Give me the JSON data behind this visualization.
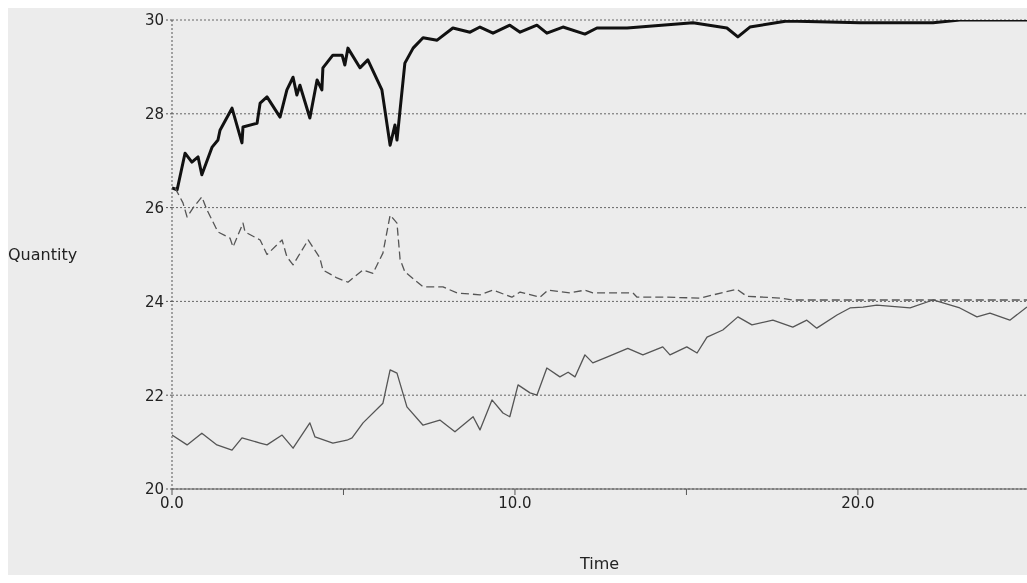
{
  "chart_data": {
    "type": "line",
    "xlabel": "Time",
    "ylabel": "Quantity",
    "xlim": [
      0,
      24.93
    ],
    "ylim": [
      20,
      30
    ],
    "xticks": [
      {
        "value": 0,
        "label": "0.0"
      },
      {
        "value": 5,
        "label": null
      },
      {
        "value": 10,
        "label": "10.0"
      },
      {
        "value": 15,
        "label": null
      },
      {
        "value": 20,
        "label": "20.0"
      }
    ],
    "yticks": [
      20,
      22,
      24,
      26,
      28,
      30
    ],
    "grid": "y",
    "marker": "none",
    "series": [
      {
        "color": "#111111",
        "line_style": "solid",
        "x": [
          0,
          0.15,
          0.38,
          0.58,
          0.76,
          0.87,
          1.17,
          1.34,
          1.4,
          1.75,
          2.04,
          2.07,
          2.48,
          2.57,
          2.77,
          3.15,
          3.35,
          3.53,
          3.64,
          3.73,
          4.02,
          4.23,
          4.37,
          4.4,
          4.69,
          4.96,
          5.04,
          5.13,
          5.48,
          5.71,
          6.12,
          6.36,
          6.5,
          6.56,
          6.79,
          7.03,
          7.32,
          7.73,
          8.19,
          8.69,
          8.98,
          9.36,
          9.85,
          10.15,
          10.64,
          10.93,
          11.4,
          12.04,
          12.39,
          13.27,
          15.19,
          16.18,
          16.5,
          16.85,
          17.93,
          20.06,
          22.19,
          22.97,
          24.93
        ],
        "values": [
          26.42,
          26.38,
          27.16,
          26.97,
          27.08,
          26.7,
          27.29,
          27.44,
          27.65,
          28.12,
          27.38,
          27.72,
          27.8,
          28.23,
          28.36,
          27.93,
          28.51,
          28.78,
          28.4,
          28.61,
          27.91,
          28.72,
          28.51,
          28.98,
          29.25,
          29.25,
          29.04,
          29.4,
          28.98,
          29.15,
          28.51,
          27.33,
          27.76,
          27.44,
          29.08,
          29.4,
          29.62,
          29.57,
          29.83,
          29.74,
          29.85,
          29.72,
          29.89,
          29.74,
          29.89,
          29.72,
          29.85,
          29.7,
          29.83,
          29.83,
          29.94,
          29.83,
          29.64,
          29.85,
          29.98,
          29.94,
          29.94,
          30,
          30
        ]
      },
      {
        "color": "#555555",
        "line_style": "dashed",
        "x": [
          0.09,
          0.32,
          0.44,
          0.61,
          0.87,
          1.02,
          1.34,
          1.69,
          1.78,
          2.07,
          2.13,
          2.57,
          2.77,
          3.21,
          3.35,
          3.53,
          3.97,
          4.31,
          4.4,
          4.81,
          5.13,
          5.57,
          5.86,
          6.15,
          6.36,
          6.56,
          6.65,
          6.79,
          7.32,
          7.9,
          8.31,
          8.98,
          9.36,
          9.91,
          10.15,
          10.73,
          10.96,
          11.6,
          12.04,
          12.27,
          13.44,
          13.56,
          14.43,
          15.39,
          16.47,
          16.76,
          17.73,
          18.1,
          21.02,
          24.93
        ],
        "values": [
          26.42,
          26.1,
          25.8,
          25.99,
          26.23,
          25.95,
          25.48,
          25.35,
          25.16,
          25.67,
          25.48,
          25.31,
          25.0,
          25.31,
          24.95,
          24.78,
          25.31,
          24.93,
          24.67,
          24.5,
          24.41,
          24.67,
          24.6,
          25.03,
          25.84,
          25.67,
          24.9,
          24.63,
          24.31,
          24.31,
          24.18,
          24.14,
          24.24,
          24.09,
          24.2,
          24.09,
          24.24,
          24.18,
          24.24,
          24.18,
          24.18,
          24.09,
          24.09,
          24.07,
          24.26,
          24.11,
          24.07,
          24.03,
          24.03,
          24.03
        ]
      },
      {
        "color": "#555555",
        "line_style": "solid",
        "x": [
          0,
          0.44,
          0.87,
          1.31,
          1.75,
          2.04,
          2.57,
          2.77,
          3.21,
          3.53,
          4.02,
          4.17,
          4.69,
          5.1,
          5.25,
          5.57,
          6.15,
          6.36,
          6.56,
          6.85,
          7.32,
          7.81,
          8.25,
          8.78,
          8.98,
          9.33,
          9.65,
          9.85,
          10.09,
          10.44,
          10.64,
          10.93,
          11.31,
          11.55,
          11.75,
          12.04,
          12.27,
          12.68,
          13.29,
          13.73,
          14.31,
          14.52,
          15.01,
          15.31,
          15.6,
          16.06,
          16.5,
          16.91,
          17.52,
          18.1,
          18.51,
          18.8,
          19.39,
          19.77,
          20.15,
          20.55,
          21.52,
          22.19,
          22.97,
          23.47,
          23.85,
          24.43,
          24.93
        ],
        "values": [
          21.15,
          20.94,
          21.19,
          20.94,
          20.83,
          21.09,
          20.98,
          20.94,
          21.15,
          20.87,
          21.41,
          21.11,
          20.98,
          21.04,
          21.09,
          21.41,
          21.83,
          22.54,
          22.47,
          21.75,
          21.36,
          21.47,
          21.22,
          21.54,
          21.26,
          21.9,
          21.62,
          21.54,
          22.22,
          22.05,
          22.0,
          22.58,
          22.39,
          22.49,
          22.39,
          22.86,
          22.69,
          22.81,
          23.0,
          22.86,
          23.03,
          22.86,
          23.03,
          22.9,
          23.24,
          23.39,
          23.67,
          23.5,
          23.6,
          23.45,
          23.6,
          23.43,
          23.71,
          23.86,
          23.88,
          23.92,
          23.86,
          24.03,
          23.86,
          23.67,
          23.75,
          23.6,
          23.88
        ]
      }
    ]
  }
}
